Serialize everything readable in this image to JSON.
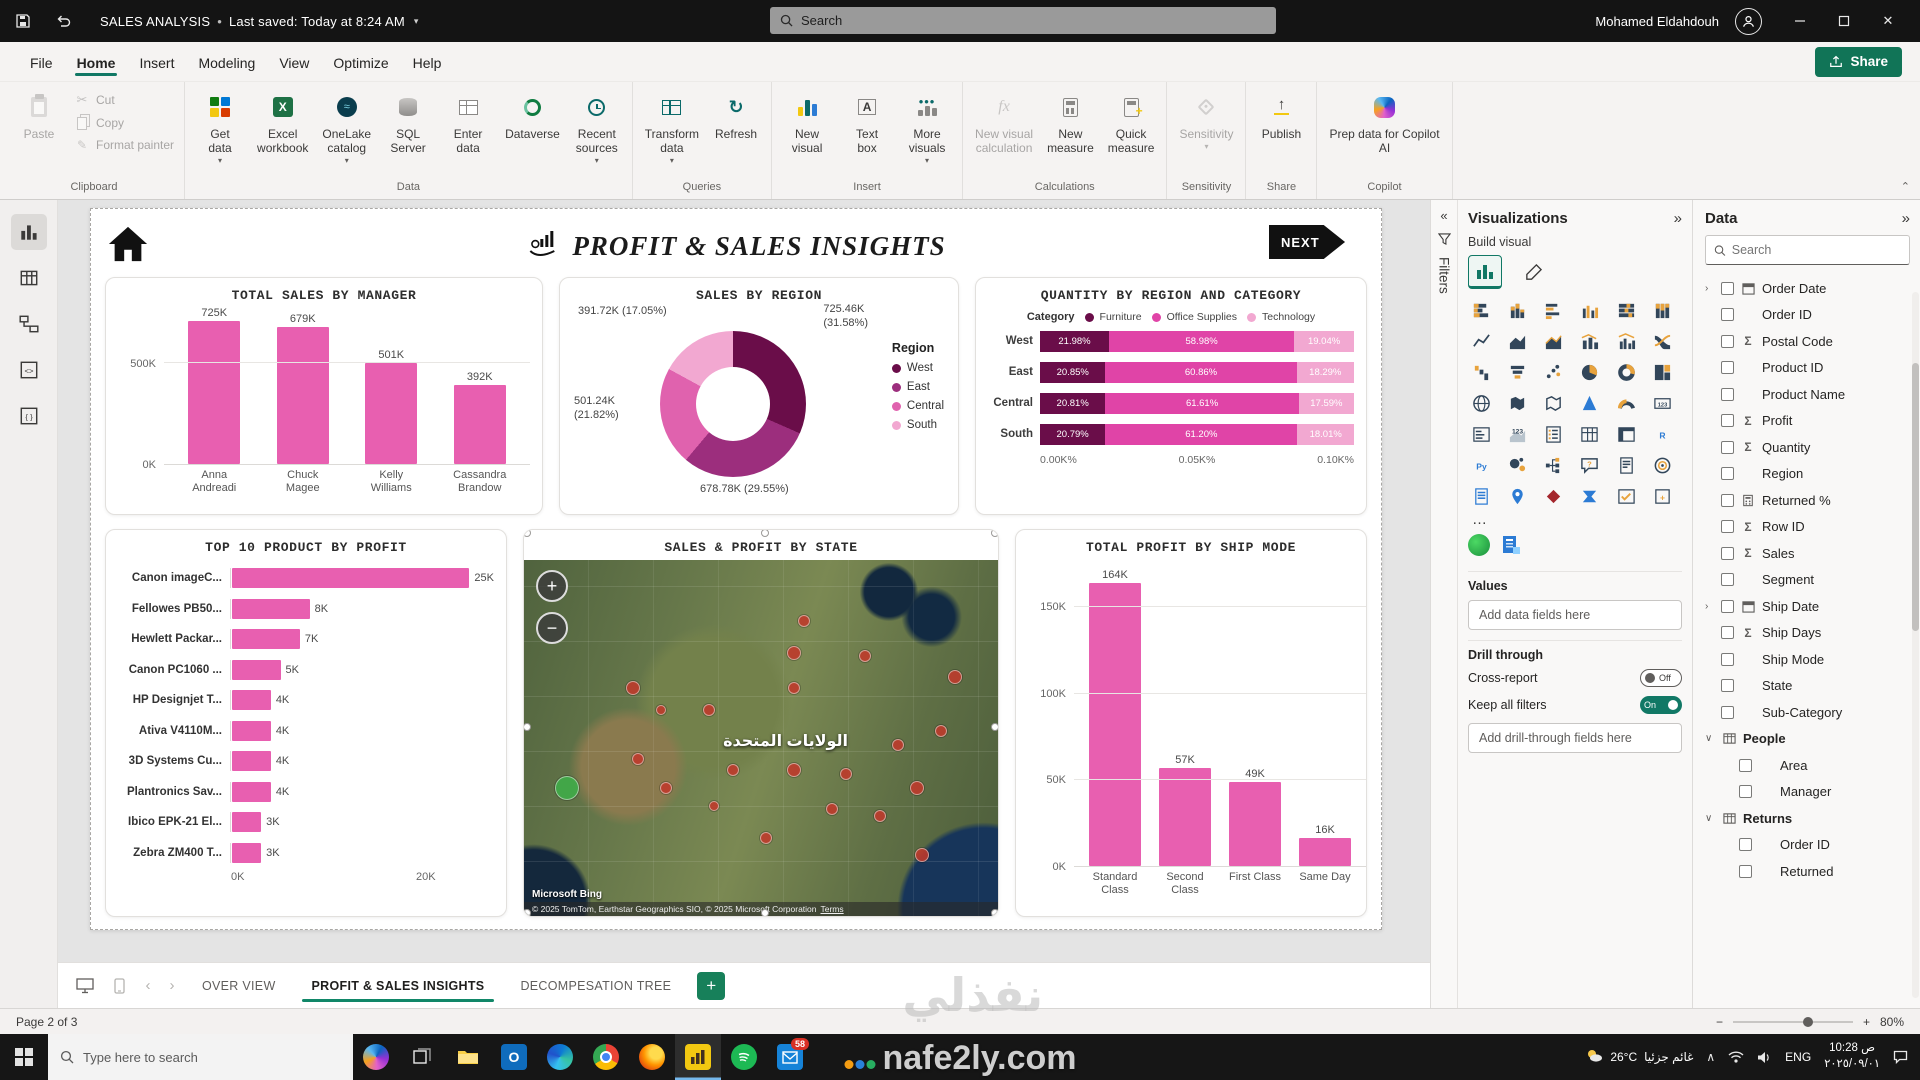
{
  "accent": {
    "teal": "#117865",
    "pink": "#e85fb0",
    "dark_plum": "#6a0d49"
  },
  "titlebar": {
    "file_title": "SALES ANALYSIS",
    "separator": "•",
    "saved_status": "Last saved: Today at 8:24 AM",
    "search_placeholder": "Search",
    "user_name": "Mohamed Eldahdouh"
  },
  "menubar": {
    "items": [
      {
        "label": "File",
        "active": false
      },
      {
        "label": "Home",
        "active": true
      },
      {
        "label": "Insert",
        "active": false
      },
      {
        "label": "Modeling",
        "active": false
      },
      {
        "label": "View",
        "active": false
      },
      {
        "label": "Optimize",
        "active": false
      },
      {
        "label": "Help",
        "active": false
      }
    ],
    "share_label": "Share"
  },
  "ribbon": {
    "groups": [
      {
        "caption": "Clipboard",
        "buttons": [
          {
            "label": "Paste",
            "icon": "paste",
            "size": "large",
            "disabled": true
          },
          {
            "label": "Cut",
            "icon": "cut",
            "size": "small",
            "disabled": true
          },
          {
            "label": "Copy",
            "icon": "copy",
            "size": "small",
            "disabled": true
          },
          {
            "label": "Format painter",
            "icon": "format-painter",
            "size": "small",
            "disabled": true
          }
        ]
      },
      {
        "caption": "Data",
        "buttons": [
          {
            "label": "Get\ndata",
            "icon": "get-data",
            "size": "large",
            "dropdown": true
          },
          {
            "label": "Excel\nworkbook",
            "icon": "excel",
            "size": "large"
          },
          {
            "label": "OneLake\ncatalog",
            "icon": "onelake",
            "size": "large",
            "dropdown": true
          },
          {
            "label": "SQL\nServer",
            "icon": "sql-server",
            "size": "large"
          },
          {
            "label": "Enter\ndata",
            "icon": "enter-data",
            "size": "large"
          },
          {
            "label": "Dataverse",
            "icon": "dataverse",
            "size": "large"
          },
          {
            "label": "Recent\nsources",
            "icon": "recent-sources",
            "size": "large",
            "dropdown": true
          }
        ]
      },
      {
        "caption": "Queries",
        "buttons": [
          {
            "label": "Transform\ndata",
            "icon": "transform-data",
            "size": "large",
            "dropdown": true
          },
          {
            "label": "Refresh",
            "icon": "refresh",
            "size": "large"
          }
        ]
      },
      {
        "caption": "Insert",
        "buttons": [
          {
            "label": "New\nvisual",
            "icon": "new-visual",
            "size": "large"
          },
          {
            "label": "Text\nbox",
            "icon": "text-box",
            "size": "large"
          },
          {
            "label": "More\nvisuals",
            "icon": "more-visuals",
            "size": "large",
            "dropdown": true
          }
        ]
      },
      {
        "caption": "Calculations",
        "buttons": [
          {
            "label": "New visual\ncalculation",
            "icon": "visual-calculation",
            "size": "large",
            "disabled": true
          },
          {
            "label": "New\nmeasure",
            "icon": "new-measure",
            "size": "large"
          },
          {
            "label": "Quick\nmeasure",
            "icon": "quick-measure",
            "size": "large"
          }
        ]
      },
      {
        "caption": "Sensitivity",
        "buttons": [
          {
            "label": "Sensitivity",
            "icon": "sensitivity",
            "size": "large",
            "disabled": true,
            "dropdown": true
          }
        ]
      },
      {
        "caption": "Share",
        "buttons": [
          {
            "label": "Publish",
            "icon": "publish",
            "size": "large"
          }
        ]
      },
      {
        "caption": "Copilot",
        "buttons": [
          {
            "label": "Prep data for Copilot\nAI",
            "icon": "copilot",
            "size": "large"
          }
        ]
      }
    ]
  },
  "left_rail": [
    {
      "name": "report-view",
      "active": true
    },
    {
      "name": "table-view",
      "active": false
    },
    {
      "name": "model-view",
      "active": false
    },
    {
      "name": "dax-query-view",
      "active": false
    },
    {
      "name": "tmdl-view",
      "active": false
    }
  ],
  "report": {
    "title": "PROFIT & SALES INSIGHTS",
    "next_label": "NEXT"
  },
  "chart_data": [
    {
      "type": "bar",
      "title": "TOTAL SALES BY MANAGER",
      "categories": [
        "Anna\nAndreadi",
        "Chuck\nMagee",
        "Kelly\nWilliams",
        "Cassandra\nBrandow"
      ],
      "values": [
        725,
        679,
        501,
        392
      ],
      "value_labels": [
        "725K",
        "679K",
        "501K",
        "392K"
      ],
      "yticks": [
        {
          "label": "500K",
          "value": 500
        },
        {
          "label": "0K",
          "value": 0
        }
      ],
      "ylim": [
        0,
        780
      ],
      "bar_color": "#e85fb0"
    },
    {
      "type": "pie",
      "title": "SALES BY REGION",
      "legend_title": "Region",
      "slices": [
        {
          "label": "West",
          "value": 725.46,
          "pct": 31.58,
          "callout": "725.46K\n(31.58%)",
          "color": "#6a0d49"
        },
        {
          "label": "East",
          "value": 678.78,
          "pct": 29.55,
          "callout": "678.78K (29.55%)",
          "color": "#9c2e7d"
        },
        {
          "label": "Central",
          "value": 501.24,
          "pct": 21.82,
          "callout": "501.24K\n(21.82%)",
          "color": "#e062ae"
        },
        {
          "label": "South",
          "value": 391.72,
          "pct": 17.05,
          "callout": "391.72K (17.05%)",
          "color": "#f2a8d1"
        }
      ]
    },
    {
      "type": "bar",
      "subtype": "100-stacked-horizontal",
      "title": "QUANTITY BY REGION AND CATEGORY",
      "legend_label": "Category",
      "categories": [
        "West",
        "East",
        "Central",
        "South"
      ],
      "series": [
        {
          "name": "Furniture",
          "color": "#6a0d49",
          "values": [
            21.98,
            20.85,
            20.81,
            20.79
          ]
        },
        {
          "name": "Office Supplies",
          "color": "#e044a7",
          "values": [
            58.98,
            60.86,
            61.61,
            61.2
          ]
        },
        {
          "name": "Technology",
          "color": "#f2a8d1",
          "values": [
            19.04,
            18.29,
            17.59,
            18.01
          ]
        }
      ],
      "xticks": [
        "0.00K%",
        "0.05K%",
        "0.10K%"
      ]
    },
    {
      "type": "bar",
      "subtype": "horizontal",
      "title": "TOP 10 PRODUCT BY PROFIT",
      "categories": [
        "Canon imageC...",
        "Fellowes PB50...",
        "Hewlett Packar...",
        "Canon PC1060 ...",
        "HP Designjet T...",
        "Ativa V4110M...",
        "3D Systems Cu...",
        "Plantronics Sav...",
        "Ibico EPK-21 El...",
        "Zebra ZM400 T..."
      ],
      "values": [
        25,
        8,
        7,
        5,
        4,
        4,
        4,
        4,
        3,
        3
      ],
      "value_labels": [
        "25K",
        "8K",
        "7K",
        "5K",
        "4K",
        "4K",
        "4K",
        "4K",
        "3K",
        "3K"
      ],
      "xticks": [
        {
          "label": "0K",
          "value": 0
        },
        {
          "label": "20K",
          "value": 20
        }
      ],
      "xlim": [
        0,
        27
      ],
      "bar_color": "#e85fb0"
    },
    {
      "type": "map",
      "title": "SALES & PROFIT BY STATE",
      "map_label": "الولايات المتحدة",
      "attribution": "Microsoft Bing",
      "copyright": "© 2025 TomTom, Earthstar Geographics SIO, © 2025 Microsoft Corporation",
      "terms_label": "Terms",
      "zoom_in": "+",
      "zoom_out": "−",
      "markers": [
        {
          "x": 9,
          "y": 64,
          "r": 12,
          "color": "#3fae49"
        },
        {
          "x": 23,
          "y": 36,
          "r": 7,
          "color": "#c0392b"
        },
        {
          "x": 24,
          "y": 56,
          "r": 6,
          "color": "#c0392b"
        },
        {
          "x": 29,
          "y": 42,
          "r": 5,
          "color": "#c0392b"
        },
        {
          "x": 39,
          "y": 42,
          "r": 6,
          "color": "#c0392b"
        },
        {
          "x": 30,
          "y": 64,
          "r": 6,
          "color": "#c0392b"
        },
        {
          "x": 40,
          "y": 69,
          "r": 5,
          "color": "#c0392b"
        },
        {
          "x": 44,
          "y": 59,
          "r": 6,
          "color": "#c0392b"
        },
        {
          "x": 51,
          "y": 78,
          "r": 6,
          "color": "#c0392b"
        },
        {
          "x": 57,
          "y": 26,
          "r": 7,
          "color": "#c0392b"
        },
        {
          "x": 59,
          "y": 17,
          "r": 6,
          "color": "#c0392b"
        },
        {
          "x": 57,
          "y": 36,
          "r": 6,
          "color": "#c0392b"
        },
        {
          "x": 57,
          "y": 59,
          "r": 7,
          "color": "#c0392b"
        },
        {
          "x": 65,
          "y": 70,
          "r": 6,
          "color": "#c0392b"
        },
        {
          "x": 68,
          "y": 60,
          "r": 6,
          "color": "#c0392b"
        },
        {
          "x": 72,
          "y": 27,
          "r": 6,
          "color": "#c0392b"
        },
        {
          "x": 75,
          "y": 72,
          "r": 6,
          "color": "#c0392b"
        },
        {
          "x": 79,
          "y": 52,
          "r": 6,
          "color": "#c0392b"
        },
        {
          "x": 83,
          "y": 64,
          "r": 7,
          "color": "#c0392b"
        },
        {
          "x": 84,
          "y": 83,
          "r": 7,
          "color": "#c0392b"
        },
        {
          "x": 91,
          "y": 33,
          "r": 7,
          "color": "#c0392b"
        },
        {
          "x": 88,
          "y": 48,
          "r": 6,
          "color": "#c0392b"
        }
      ]
    },
    {
      "type": "bar",
      "title": "TOTAL PROFIT BY SHIP MODE",
      "categories": [
        "Standard\nClass",
        "Second\nClass",
        "First Class",
        "Same Day"
      ],
      "values": [
        164,
        57,
        49,
        16
      ],
      "value_labels": [
        "164K",
        "57K",
        "49K",
        "16K"
      ],
      "yticks": [
        {
          "label": "150K",
          "value": 150
        },
        {
          "label": "100K",
          "value": 100
        },
        {
          "label": "50K",
          "value": 50
        },
        {
          "label": "0K",
          "value": 0
        }
      ],
      "ylim": [
        0,
        178
      ],
      "bar_color": "#e85fb0"
    }
  ],
  "viz_panel": {
    "title": "Visualizations",
    "collapse_glyph": "»",
    "expand_glyph": "«",
    "filters_label": "Filters",
    "build_label": "Build visual",
    "visual_icons": [
      "stacked-bar-chart",
      "stacked-column-chart",
      "clustered-bar-chart",
      "clustered-column-chart",
      "100-stacked-bar-chart",
      "100-stacked-column-chart",
      "line-chart",
      "area-chart",
      "stacked-area-chart",
      "line-and-stacked-column-chart",
      "line-and-clustered-column-chart",
      "ribbon-chart",
      "waterfall-chart",
      "funnel-chart",
      "scatter-chart",
      "pie-chart",
      "donut-chart",
      "treemap",
      "map",
      "filled-map",
      "shape-map",
      "azure-map",
      "gauge",
      "card",
      "multi-row-card",
      "kpi",
      "slicer",
      "table",
      "matrix",
      "r-script-visual",
      "python-visual",
      "key-influencers",
      "decomposition-tree",
      "qa-visual",
      "narrative",
      "metrics",
      "paginated-report",
      "arcgis-map",
      "power-apps-visual",
      "power-automate-visual",
      "scorecard",
      "custom-visual"
    ],
    "more_label": "…",
    "values_label": "Values",
    "values_placeholder": "Add data fields here",
    "drill_label": "Drill through",
    "cross_report_label": "Cross-report",
    "cross_report_state": "Off",
    "keep_filters_label": "Keep all filters",
    "keep_filters_state": "On",
    "drill_placeholder": "Add drill-through fields here"
  },
  "data_panel": {
    "title": "Data",
    "collapse_glyph": "»",
    "search_placeholder": "Search",
    "fields": [
      {
        "label": "Order Date",
        "icon": "calendar",
        "expand": true
      },
      {
        "label": "Order ID"
      },
      {
        "label": "Postal Code",
        "icon": "sigma"
      },
      {
        "label": "Product ID"
      },
      {
        "label": "Product Name"
      },
      {
        "label": "Profit",
        "icon": "sigma"
      },
      {
        "label": "Quantity",
        "icon": "sigma"
      },
      {
        "label": "Region"
      },
      {
        "label": "Returned %",
        "icon": "calculator"
      },
      {
        "label": "Row ID",
        "icon": "sigma"
      },
      {
        "label": "Sales",
        "icon": "sigma"
      },
      {
        "label": "Segment"
      },
      {
        "label": "Ship Date",
        "icon": "calendar",
        "expand": true
      },
      {
        "label": "Ship Days",
        "icon": "sigma"
      },
      {
        "label": "Ship Mode"
      },
      {
        "label": "State"
      },
      {
        "label": "Sub-Category"
      },
      {
        "label": "People",
        "group": true
      },
      {
        "label": "Area",
        "indent": true
      },
      {
        "label": "Manager",
        "indent": true
      },
      {
        "label": "Returns",
        "group": true
      },
      {
        "label": "Order ID",
        "indent": true
      },
      {
        "label": "Returned",
        "indent": true
      }
    ]
  },
  "page_tabs": {
    "tabs": [
      {
        "label": "OVER VIEW",
        "active": false
      },
      {
        "label": "PROFIT & SALES INSIGHTS",
        "active": true
      },
      {
        "label": "DECOMPESATION TREE",
        "active": false
      }
    ],
    "add_label": "+"
  },
  "status_bar": {
    "page_indicator": "Page 2 of 3",
    "zoom": "80%"
  },
  "taskbar": {
    "search_placeholder": "Type here to search",
    "apps": [
      {
        "name": "copilot"
      },
      {
        "name": "task-view"
      },
      {
        "name": "file-explorer"
      },
      {
        "name": "outlook"
      },
      {
        "name": "edge"
      },
      {
        "name": "chrome"
      },
      {
        "name": "firefox"
      },
      {
        "name": "power-bi",
        "active": true
      },
      {
        "name": "spotify"
      },
      {
        "name": "mail",
        "badge": "58"
      }
    ],
    "tray": {
      "weather_temp": "26°C",
      "weather_text": "غائم جزئيا",
      "language": "ENG",
      "time": "10:28 ص",
      "date": "٢٠٢٥/٠٩/٠١"
    }
  },
  "watermark": {
    "line1": "نفذلي",
    "line2": "nafe2ly.com"
  }
}
